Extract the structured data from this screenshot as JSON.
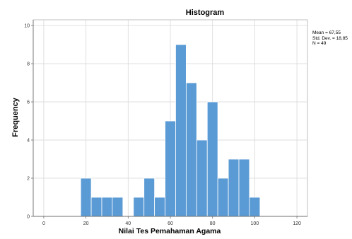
{
  "chart_data": {
    "type": "bar",
    "title": "Histogram",
    "xlabel": "Nilai Tes Pemahaman Agama",
    "ylabel": "Frequency",
    "xlim": [
      -5,
      125
    ],
    "ylim": [
      0,
      10.3
    ],
    "xticks": [
      0,
      20,
      40,
      60,
      80,
      100,
      120
    ],
    "yticks": [
      0,
      2,
      4,
      6,
      8,
      10
    ],
    "bin_width": 5,
    "bins": [
      {
        "start": 17.5,
        "count": 2
      },
      {
        "start": 22.5,
        "count": 1
      },
      {
        "start": 27.5,
        "count": 1
      },
      {
        "start": 32.5,
        "count": 1
      },
      {
        "start": 42.5,
        "count": 1
      },
      {
        "start": 47.5,
        "count": 2
      },
      {
        "start": 52.5,
        "count": 1
      },
      {
        "start": 57.5,
        "count": 5
      },
      {
        "start": 62.5,
        "count": 9
      },
      {
        "start": 67.5,
        "count": 7
      },
      {
        "start": 72.5,
        "count": 4
      },
      {
        "start": 77.5,
        "count": 6
      },
      {
        "start": 82.5,
        "count": 2
      },
      {
        "start": 87.5,
        "count": 3
      },
      {
        "start": 92.5,
        "count": 3
      },
      {
        "start": 97.5,
        "count": 1
      }
    ],
    "grid": true,
    "bar_color": "#5b9bd5",
    "stats": {
      "mean": "Mean = 67,55",
      "std": "Std. Dev. = 18,85",
      "n": "N = 49"
    }
  }
}
